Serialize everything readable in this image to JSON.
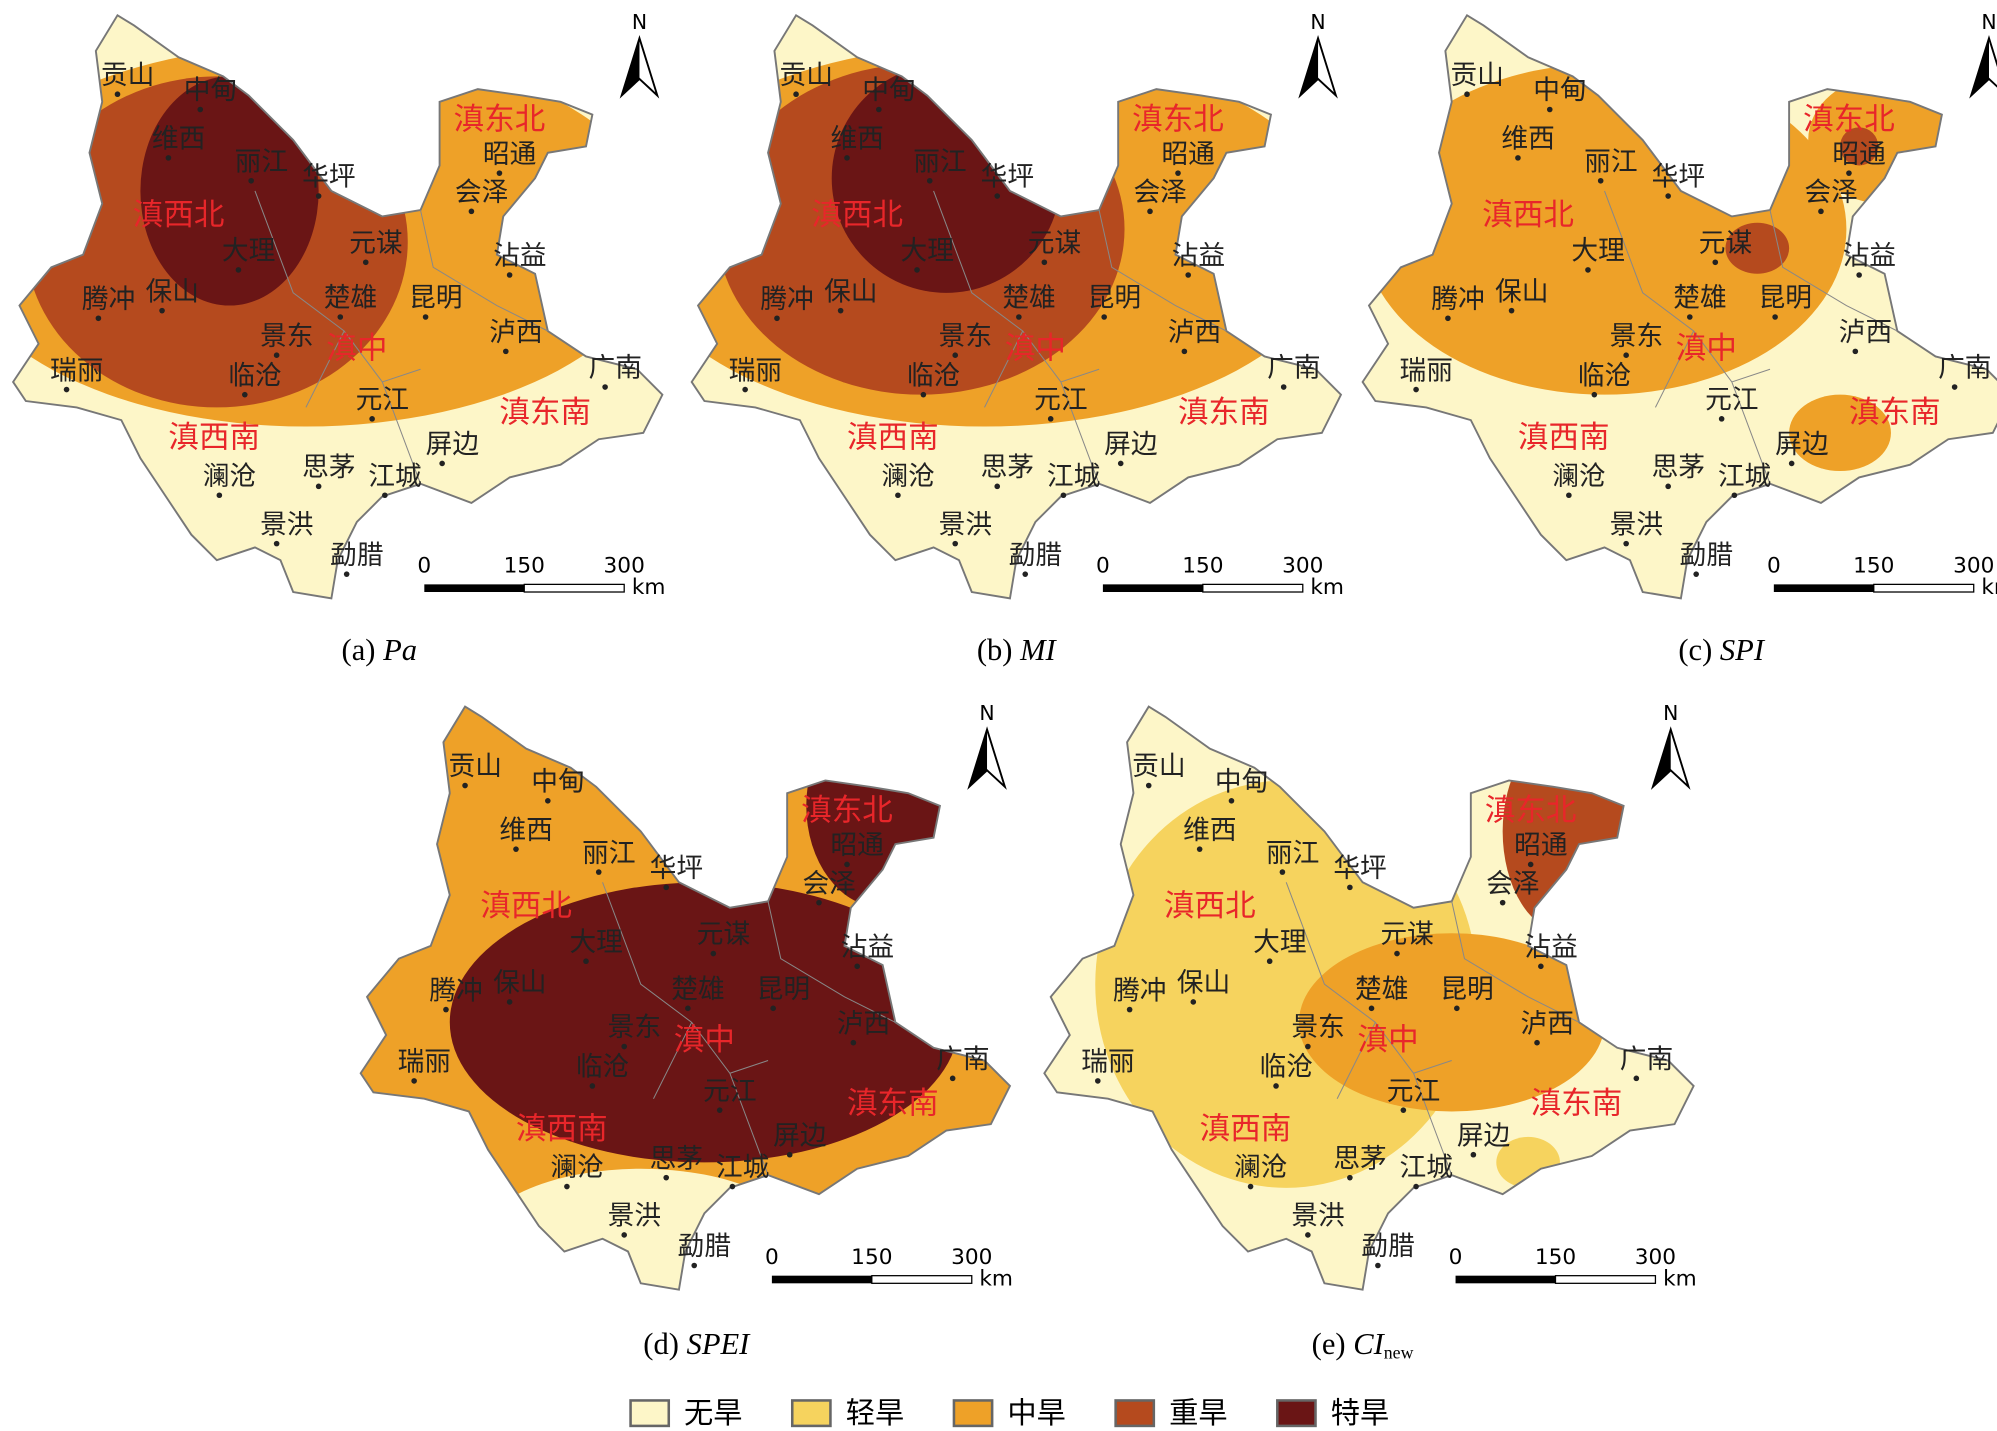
{
  "panels": [
    {
      "label": "(a)",
      "index": "Pa"
    },
    {
      "label": "(b)",
      "index": "MI"
    },
    {
      "label": "(c)",
      "index": "SPI"
    },
    {
      "label": "(d)",
      "index": "SPEI"
    },
    {
      "label": "(e)",
      "index": "CI",
      "subscript": "new"
    }
  ],
  "cities": [
    "贡山",
    "中甸",
    "维西",
    "丽江",
    "华坪",
    "大理",
    "元谋",
    "会泽",
    "昭通",
    "沾益",
    "楚雄",
    "昆明",
    "腾冲",
    "保山",
    "景东",
    "泸西",
    "瑞丽",
    "临沧",
    "广南",
    "元江",
    "屏边",
    "澜沧",
    "思茅",
    "江城",
    "景洪",
    "勐腊"
  ],
  "regions": [
    "滇西北",
    "滇东北",
    "滇中",
    "滇东南",
    "滇西南"
  ],
  "north": "N",
  "scale_bar": {
    "ticks": [
      0,
      150,
      300
    ],
    "unit": "km"
  },
  "legend": [
    {
      "label": "无旱",
      "color": "#fdf6c8"
    },
    {
      "label": "轻旱",
      "color": "#f6d35e"
    },
    {
      "label": "中旱",
      "color": "#eea128"
    },
    {
      "label": "重旱",
      "color": "#b54a1e"
    },
    {
      "label": "特旱",
      "color": "#6a1515"
    }
  ]
}
